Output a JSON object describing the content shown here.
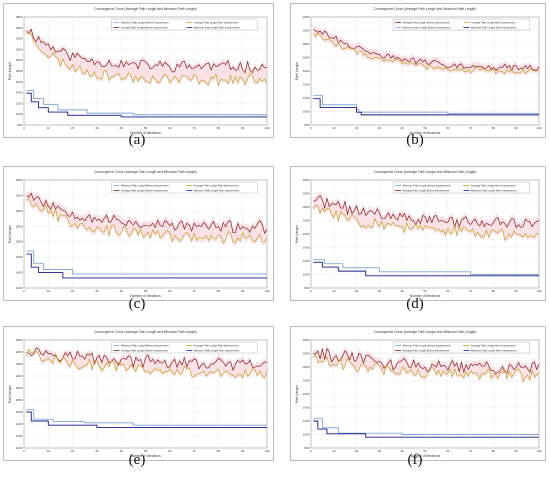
{
  "figure": {
    "background": "#ffffff",
    "colors": {
      "avg_before": "#8b1f1f",
      "avg_after": "#c9a227",
      "min_before": "#7fa8d8",
      "min_after": "#1a1a8c",
      "band": "#f7d9e0"
    }
  },
  "chart_data": [
    {
      "type": "line",
      "label": "(a)",
      "title": "Convergence Curve (Average Path Length and Minimum Path Length)",
      "xlabel": "Number of Iterations",
      "ylabel": "Path Length",
      "xlim": [
        0,
        100
      ],
      "xticks": [
        0,
        10,
        20,
        30,
        40,
        50,
        60,
        70,
        80,
        90,
        100
      ],
      "ylim": [
        800,
        2800
      ],
      "yticks": [
        800,
        1000,
        1200,
        1400,
        1600,
        1800,
        2000,
        2200,
        2400,
        2600,
        2800
      ],
      "legend": [
        "Minimum Path Length Before Improvement",
        "Average Path Length After Improvement",
        "Average Path Length Before Improvement",
        "Minimum Path Length After Improvement"
      ],
      "legend_position": "top-right",
      "series": [
        {
          "name": "Average Path Length Before Improvement",
          "color": "#8b1f1f",
          "shape": "decay",
          "start": 2600,
          "end": 1880,
          "tau": 15,
          "noise": 95,
          "seed": 11
        },
        {
          "name": "Average Path Length After Improvement",
          "color": "#c9a227",
          "shape": "decay",
          "start": 2550,
          "end": 1640,
          "tau": 14,
          "noise": 95,
          "seed": 23
        },
        {
          "name": "Minimum Path Length Before Improvement",
          "color": "#7fa8d8",
          "shape": "steps",
          "points": [
            [
              1,
              1440
            ],
            [
              4,
              1290
            ],
            [
              8,
              1180
            ],
            [
              14,
              1080
            ],
            [
              26,
              1020
            ],
            [
              45,
              990
            ],
            [
              100,
              990
            ]
          ]
        },
        {
          "name": "Minimum Path Length After Improvement",
          "color": "#1a1a8c",
          "shape": "steps",
          "points": [
            [
              1,
              1390
            ],
            [
              3,
              1230
            ],
            [
              6,
              1120
            ],
            [
              10,
              1040
            ],
            [
              18,
              980
            ],
            [
              40,
              950
            ],
            [
              100,
              950
            ]
          ]
        }
      ]
    },
    {
      "type": "line",
      "label": "(b)",
      "title": "Convergence Curve (Average Path Length and Minimum Path Length)",
      "xlabel": "Number of Iterations",
      "ylabel": "Path Length",
      "xlim": [
        0,
        100
      ],
      "xticks": [
        0,
        10,
        20,
        30,
        40,
        50,
        60,
        70,
        80,
        90,
        100
      ],
      "ylim": [
        800,
        2400
      ],
      "yticks": [
        800,
        1000,
        1200,
        1400,
        1600,
        1800,
        2000,
        2200,
        2400
      ],
      "legend": [
        "Average Path Length Before Improvement",
        "Average Path Length After Improvement",
        "Minimum Path Length Before Improvement",
        "Minimum Path Length After Improvement"
      ],
      "legend_position": "top-right",
      "series": [
        {
          "name": "Average Path Length Before Improvement",
          "color": "#8b1f1f",
          "shape": "decay",
          "start": 2250,
          "end": 1620,
          "tau": 28,
          "noise": 45,
          "seed": 31
        },
        {
          "name": "Average Path Length After Improvement",
          "color": "#c9a227",
          "shape": "decay",
          "start": 2180,
          "end": 1570,
          "tau": 28,
          "noise": 45,
          "seed": 47
        },
        {
          "name": "Minimum Path Length Before Improvement",
          "color": "#7fa8d8",
          "shape": "steps",
          "points": [
            [
              1,
              1240
            ],
            [
              5,
              1100
            ],
            [
              20,
              1030
            ],
            [
              21,
              990
            ],
            [
              60,
              970
            ],
            [
              100,
              970
            ]
          ]
        },
        {
          "name": "Minimum Path Length After Improvement",
          "color": "#1a1a8c",
          "shape": "steps",
          "points": [
            [
              1,
              1190
            ],
            [
              4,
              1060
            ],
            [
              20,
              990
            ],
            [
              22,
              950
            ],
            [
              100,
              950
            ]
          ]
        }
      ]
    },
    {
      "type": "line",
      "label": "(c)",
      "title": "Convergence Curve (Average Path Length and Minimum Path Length)",
      "xlabel": "Number of Iterations",
      "ylabel": "Path Length",
      "xlim": [
        0,
        100
      ],
      "xticks": [
        0,
        10,
        20,
        30,
        40,
        50,
        60,
        70,
        80,
        90,
        100
      ],
      "ylim": [
        1200,
        2600
      ],
      "yticks": [
        1200,
        1400,
        1600,
        1800,
        2000,
        2200,
        2400,
        2600
      ],
      "legend": [
        "Minimum Path Length Before Improvement",
        "Average Path Length After Improvement",
        "Average Path Length Before Improvement",
        "Minimum Path Length After Improvement"
      ],
      "legend_position": "top-right",
      "series": [
        {
          "name": "Average Path Length Before Improvement",
          "color": "#8b1f1f",
          "shape": "decay",
          "start": 2450,
          "end": 1980,
          "tau": 22,
          "noise": 70,
          "seed": 53
        },
        {
          "name": "Average Path Length After Improvement",
          "color": "#c9a227",
          "shape": "decay",
          "start": 2380,
          "end": 1840,
          "tau": 22,
          "noise": 70,
          "seed": 67
        },
        {
          "name": "Minimum Path Length Before Improvement",
          "color": "#7fa8d8",
          "shape": "steps",
          "points": [
            [
              1,
              1680
            ],
            [
              4,
              1520
            ],
            [
              8,
              1440
            ],
            [
              20,
              1380
            ],
            [
              100,
              1380
            ]
          ]
        },
        {
          "name": "Minimum Path Length After Improvement",
          "color": "#1a1a8c",
          "shape": "steps",
          "points": [
            [
              1,
              1640
            ],
            [
              3,
              1470
            ],
            [
              6,
              1400
            ],
            [
              16,
              1330
            ],
            [
              100,
              1330
            ]
          ]
        }
      ]
    },
    {
      "type": "line",
      "label": "(d)",
      "title": "Convergence Curve (Average Path Length and Minimum Path Length)",
      "xlabel": "Number of Iterations",
      "ylabel": "Path Length",
      "xlim": [
        0,
        100
      ],
      "xticks": [
        0,
        10,
        20,
        30,
        40,
        50,
        60,
        70,
        80,
        90,
        100
      ],
      "ylim": [
        800,
        2400
      ],
      "yticks": [
        800,
        1000,
        1200,
        1400,
        1600,
        1800,
        2000,
        2200,
        2400
      ],
      "legend": [
        "Minimum Path Length Before Improvement",
        "Average Path Length After Improvement",
        "Average Path Length Before Improvement",
        "Minimum Path Length After Improvement"
      ],
      "legend_position": "top-right",
      "series": [
        {
          "name": "Average Path Length Before Improvement",
          "color": "#8b1f1f",
          "shape": "decay",
          "start": 2120,
          "end": 1720,
          "tau": 35,
          "noise": 80,
          "seed": 71
        },
        {
          "name": "Average Path Length After Improvement",
          "color": "#c9a227",
          "shape": "decay",
          "start": 2000,
          "end": 1560,
          "tau": 35,
          "noise": 80,
          "seed": 83
        },
        {
          "name": "Minimum Path Length Before Improvement",
          "color": "#7fa8d8",
          "shape": "steps",
          "points": [
            [
              1,
              1220
            ],
            [
              6,
              1160
            ],
            [
              14,
              1100
            ],
            [
              30,
              1040
            ],
            [
              70,
              1000
            ],
            [
              100,
              1000
            ]
          ]
        },
        {
          "name": "Minimum Path Length After Improvement",
          "color": "#1a1a8c",
          "shape": "steps",
          "points": [
            [
              1,
              1180
            ],
            [
              5,
              1110
            ],
            [
              12,
              1050
            ],
            [
              24,
              980
            ],
            [
              100,
              980
            ]
          ]
        }
      ]
    },
    {
      "type": "line",
      "label": "(e)",
      "title": "Convergence Curve (Average Path Length and Minimum Path Length)",
      "xlabel": "Number of Iterations",
      "ylabel": "Path Length",
      "xlim": [
        0,
        100
      ],
      "xticks": [
        0,
        10,
        20,
        30,
        40,
        50,
        60,
        70,
        80,
        90,
        100
      ],
      "ylim": [
        1000,
        2800
      ],
      "yticks": [
        1000,
        1200,
        1400,
        1600,
        1800,
        2000,
        2200,
        2400,
        2600,
        2800
      ],
      "legend": [
        "Minimum Path Length Before Improvement",
        "Average Path Length After Improvement",
        "Average Path Length Before Improvement",
        "Minimum Path Length After Improvement"
      ],
      "legend_position": "top-right",
      "series": [
        {
          "name": "Average Path Length Before Improvement",
          "color": "#8b1f1f",
          "shape": "decay",
          "start": 2650,
          "end": 2350,
          "tau": 40,
          "noise": 90,
          "seed": 97
        },
        {
          "name": "Average Path Length After Improvement",
          "color": "#c9a227",
          "shape": "decay",
          "start": 2580,
          "end": 2200,
          "tau": 40,
          "noise": 90,
          "seed": 101
        },
        {
          "name": "Minimum Path Length Before Improvement",
          "color": "#7fa8d8",
          "shape": "steps",
          "points": [
            [
              1,
              1640
            ],
            [
              4,
              1480
            ],
            [
              12,
              1440
            ],
            [
              25,
              1420
            ],
            [
              45,
              1380
            ],
            [
              100,
              1380
            ]
          ]
        },
        {
          "name": "Minimum Path Length After Improvement",
          "color": "#1a1a8c",
          "shape": "steps",
          "points": [
            [
              1,
              1600
            ],
            [
              3,
              1450
            ],
            [
              10,
              1380
            ],
            [
              30,
              1340
            ],
            [
              100,
              1340
            ]
          ]
        }
      ]
    },
    {
      "type": "line",
      "label": "(f)",
      "title": "Convergence Curve (Average Path Length and Minimum Path Length)",
      "xlabel": "Number of Iterations",
      "ylabel": "Path Length",
      "xlim": [
        0,
        100
      ],
      "xticks": [
        0,
        10,
        20,
        30,
        40,
        50,
        60,
        70,
        80,
        90,
        100
      ],
      "ylim": [
        800,
        2400
      ],
      "yticks": [
        800,
        1000,
        1200,
        1400,
        1600,
        1800,
        2000,
        2200,
        2400
      ],
      "legend": [
        "Minimum Path Length Before Improvement",
        "Average Path Length After Improvement",
        "Average Path Length Before Improvement",
        "Minimum Path Length After Improvement"
      ],
      "legend_position": "top-right",
      "series": [
        {
          "name": "Average Path Length Before Improvement",
          "color": "#8b1f1f",
          "shape": "decay",
          "start": 2240,
          "end": 1980,
          "tau": 30,
          "noise": 85,
          "seed": 113
        },
        {
          "name": "Average Path Length After Improvement",
          "color": "#c9a227",
          "shape": "decay",
          "start": 2160,
          "end": 1870,
          "tau": 30,
          "noise": 85,
          "seed": 127
        },
        {
          "name": "Minimum Path Length Before Improvement",
          "color": "#7fa8d8",
          "shape": "steps",
          "points": [
            [
              1,
              1240
            ],
            [
              5,
              1100
            ],
            [
              12,
              1020
            ],
            [
              40,
              1000
            ],
            [
              100,
              1000
            ]
          ]
        },
        {
          "name": "Minimum Path Length After Improvement",
          "color": "#1a1a8c",
          "shape": "steps",
          "points": [
            [
              1,
              1200
            ],
            [
              3,
              1080
            ],
            [
              7,
              1010
            ],
            [
              24,
              960
            ],
            [
              100,
              960
            ]
          ]
        }
      ]
    }
  ]
}
